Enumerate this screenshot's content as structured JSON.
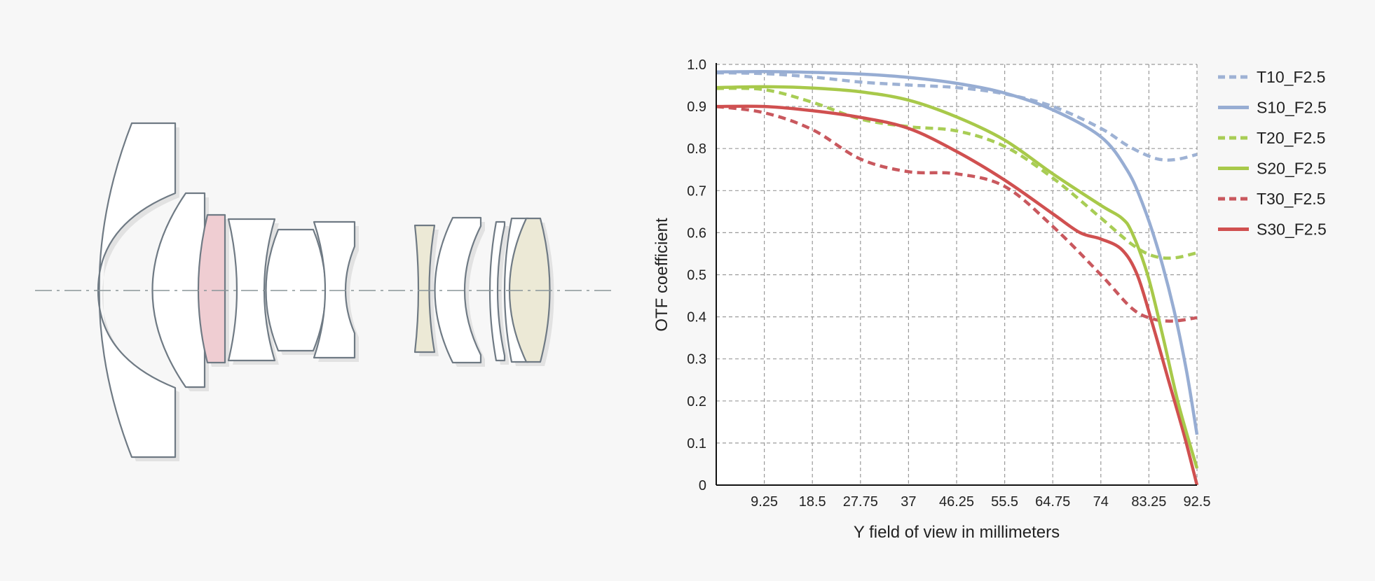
{
  "colors": {
    "background": "#f7f7f7",
    "plot_background": "#ffffff",
    "grid": "#9a9a9a",
    "lens_outline": "#6f7a84",
    "lens_fill_clear": "#ffffff",
    "lens_fill_pink": "#efcdd2",
    "lens_fill_beige": "#ece9d6",
    "optical_axis": "#8a9699"
  },
  "chart_data": {
    "type": "line",
    "xlabel": "Y field of view in millimeters",
    "ylabel": "OTF coefficient",
    "xlim": [
      0,
      92.5
    ],
    "ylim": [
      0,
      1.0
    ],
    "grid": true,
    "legend_position": "right",
    "x_ticks": [
      9.25,
      18.5,
      27.75,
      37,
      46.25,
      55.5,
      64.75,
      74,
      83.25,
      92.5
    ],
    "x_tick_labels": [
      "9.25",
      "18.5",
      "27.75",
      "37",
      "46.25",
      "55.5",
      "64.75",
      "74",
      "83.25",
      "92.5"
    ],
    "y_ticks": [
      0,
      0.1,
      0.2,
      0.3,
      0.4,
      0.5,
      0.6,
      0.7,
      0.8,
      0.9,
      1.0
    ],
    "y_tick_labels": [
      "0",
      "0.1",
      "0.2",
      "0.3",
      "0.4",
      "0.5",
      "0.6",
      "0.7",
      "0.8",
      "0.9",
      "1.0"
    ],
    "series": [
      {
        "name": "T10_F2.5",
        "color": "#9eb2d4",
        "dashed": true,
        "x": [
          0,
          9.25,
          18.5,
          27.75,
          37,
          46.25,
          55.5,
          64.75,
          74,
          79,
          83.25,
          86,
          89,
          92.5
        ],
        "y": [
          0.98,
          0.978,
          0.97,
          0.958,
          0.951,
          0.945,
          0.93,
          0.9,
          0.848,
          0.808,
          0.782,
          0.773,
          0.775,
          0.786
        ]
      },
      {
        "name": "S10_F2.5",
        "color": "#97add3",
        "dashed": false,
        "x": [
          0,
          9.25,
          18.5,
          27.75,
          37,
          46.25,
          55.5,
          64.75,
          74,
          79,
          82,
          85,
          88,
          90.5,
          92.5
        ],
        "y": [
          0.982,
          0.983,
          0.981,
          0.977,
          0.969,
          0.955,
          0.932,
          0.892,
          0.828,
          0.75,
          0.67,
          0.56,
          0.42,
          0.27,
          0.12
        ]
      },
      {
        "name": "T20_F2.5",
        "color": "#a8cd55",
        "dashed": true,
        "x": [
          0,
          9.25,
          18.5,
          27.75,
          37,
          46.25,
          55.5,
          64.75,
          74,
          80,
          84,
          88,
          92.5
        ],
        "y": [
          0.943,
          0.94,
          0.91,
          0.87,
          0.852,
          0.842,
          0.805,
          0.73,
          0.635,
          0.572,
          0.545,
          0.54,
          0.552
        ]
      },
      {
        "name": "S20_F2.5",
        "color": "#a8c94a",
        "dashed": false,
        "x": [
          0,
          9.25,
          18.5,
          27.75,
          37,
          46.25,
          55.5,
          64.75,
          74,
          78,
          80,
          83,
          86,
          89,
          92.5
        ],
        "y": [
          0.945,
          0.947,
          0.944,
          0.935,
          0.915,
          0.875,
          0.82,
          0.74,
          0.665,
          0.635,
          0.6,
          0.5,
          0.35,
          0.19,
          0.04
        ]
      },
      {
        "name": "T30_F2.5",
        "color": "#c9585e",
        "dashed": true,
        "x": [
          0,
          9.25,
          18.5,
          27.75,
          37,
          46.25,
          55.5,
          64.75,
          74,
          80,
          84,
          88,
          92.5
        ],
        "y": [
          0.9,
          0.885,
          0.845,
          0.775,
          0.745,
          0.74,
          0.71,
          0.615,
          0.5,
          0.42,
          0.395,
          0.39,
          0.398
        ]
      },
      {
        "name": "S30_F2.5",
        "color": "#d05050",
        "dashed": false,
        "x": [
          0,
          9.25,
          18.5,
          27.75,
          37,
          46.25,
          55.5,
          64.75,
          70,
          74,
          78,
          81,
          84,
          87,
          90,
          92.5
        ],
        "y": [
          0.9,
          0.9,
          0.89,
          0.874,
          0.848,
          0.793,
          0.725,
          0.645,
          0.6,
          0.585,
          0.56,
          0.5,
          0.38,
          0.25,
          0.12,
          0.0
        ]
      }
    ]
  }
}
